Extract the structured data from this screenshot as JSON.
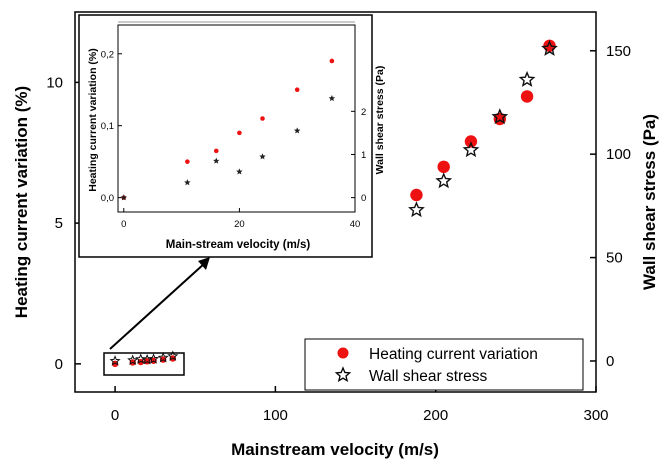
{
  "chart_data": [
    {
      "type": "scatter",
      "xlabel": "Mainstream velocity (m/s)",
      "ylabel": "Heating current variation (%)",
      "y2label": "Wall shear stress (Pa)",
      "xlim": [
        -25,
        300
      ],
      "ylim": [
        -1,
        12.5
      ],
      "y2lim": [
        -15,
        168.75
      ],
      "xticks": [
        0,
        100,
        200,
        300
      ],
      "yticks": [
        0,
        5,
        10
      ],
      "y2ticks": [
        0,
        50,
        100,
        150
      ],
      "legend_position": "bottom-right",
      "grid": false,
      "series": [
        {
          "name": "Heating current variation",
          "axis": "left",
          "marker": "filled-circle",
          "color": "#ee1111",
          "x": [
            0,
            11,
            16,
            20,
            24,
            30,
            36,
            188,
            205,
            222,
            240,
            257,
            271
          ],
          "y": [
            0.0,
            0.05,
            0.065,
            0.09,
            0.11,
            0.15,
            0.19,
            6.0,
            7.0,
            7.9,
            8.7,
            9.5,
            11.3
          ]
        },
        {
          "name": "Wall shear stress",
          "axis": "right",
          "marker": "open-star",
          "color": "#111111",
          "x": [
            0,
            11,
            16,
            20,
            24,
            30,
            36,
            188,
            205,
            222,
            240,
            257,
            271
          ],
          "y": [
            0.0,
            0.35,
            0.85,
            0.6,
            0.95,
            1.55,
            2.3,
            73,
            87,
            102,
            118,
            136,
            151
          ]
        }
      ]
    },
    {
      "type": "scatter",
      "inset": true,
      "xlabel": "Main-stream velocity (m/s)",
      "ylabel": "Heating current variation (%)",
      "y2label": "Wall shear stress (Pa)",
      "xlim": [
        -1,
        40
      ],
      "ylim": [
        -0.02,
        0.24
      ],
      "y2lim": [
        -0.333,
        4.0
      ],
      "xticks": [
        0,
        20,
        40
      ],
      "yticks": [
        0.0,
        0.1,
        0.2
      ],
      "ytick_labels": [
        "0,0",
        "0,1",
        "0,2"
      ],
      "y2ticks": [
        0,
        1,
        2
      ],
      "series": [
        {
          "name": "Heating current variation",
          "axis": "left",
          "x": [
            0,
            11,
            16,
            20,
            24,
            30,
            36
          ],
          "y": [
            0.0,
            0.05,
            0.065,
            0.09,
            0.11,
            0.15,
            0.19
          ]
        },
        {
          "name": "Wall shear stress",
          "axis": "right",
          "x": [
            0,
            11,
            16,
            20,
            24,
            30,
            36
          ],
          "y": [
            0.0,
            0.35,
            0.85,
            0.6,
            0.95,
            1.55,
            2.3
          ]
        }
      ]
    }
  ]
}
